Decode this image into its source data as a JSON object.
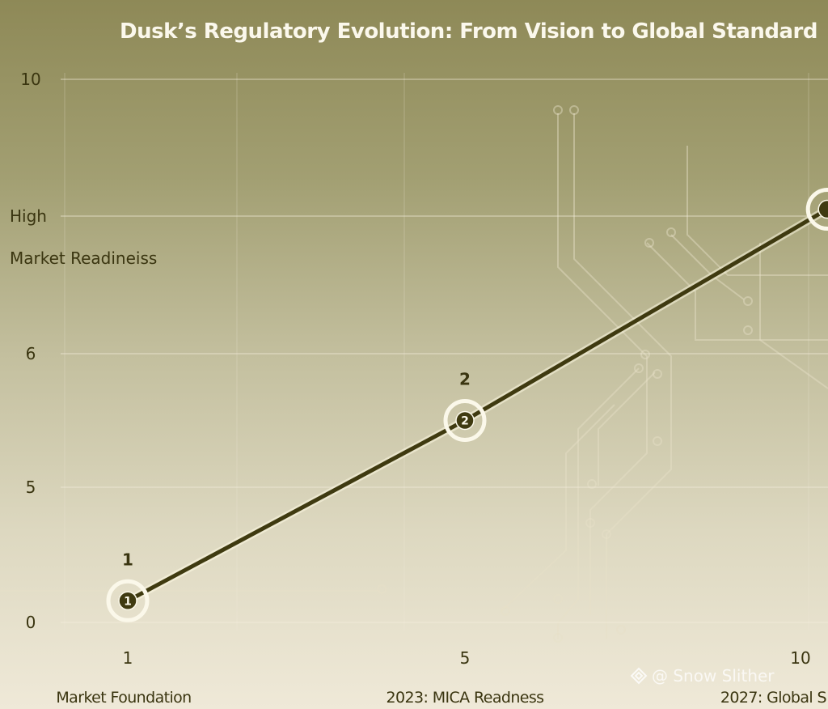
{
  "chart_data": {
    "type": "line",
    "title": "Dusk’s Regulatory Evolution: From Vision to Global Standard",
    "ylabel": "Market Readineiss",
    "y_ticks": [
      {
        "value": 0,
        "label": "0"
      },
      {
        "value": 5,
        "label": "5"
      },
      {
        "value": 6,
        "label": "6"
      },
      {
        "value": 8,
        "label": "High"
      },
      {
        "value": 10,
        "label": "10"
      }
    ],
    "x_ticks": [
      {
        "value": 1,
        "label": "1",
        "category": "Market Foundation"
      },
      {
        "value": 5,
        "label": "5",
        "category": "2023: MICA Readness"
      },
      {
        "value": 10,
        "label": "10",
        "category": "2027: Global S"
      }
    ],
    "series": [
      {
        "points": [
          {
            "x": 1,
            "y": 0.8,
            "label": "1"
          },
          {
            "x": 5,
            "y": 5.5,
            "label": "2"
          },
          {
            "x": 10.4,
            "y": 8.1,
            "label": ""
          }
        ]
      }
    ],
    "grid": true,
    "colors": {
      "line": "#3f3a10",
      "marker_ring": "#fbf8ea",
      "text": "#3a3510"
    }
  },
  "watermark": "@ Snow Slither"
}
